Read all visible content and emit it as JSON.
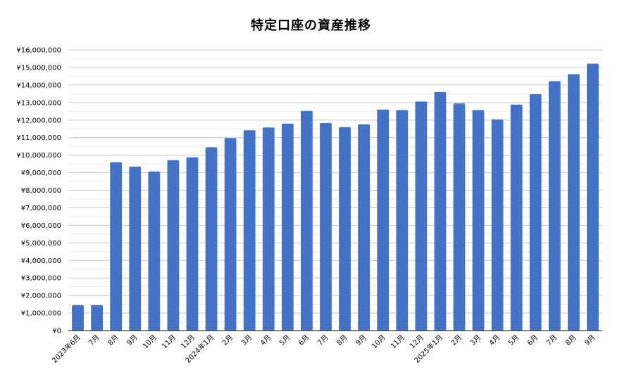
{
  "chart_data": {
    "type": "bar",
    "title": "特定口座の資産推移",
    "categories": [
      "2023年6月",
      "7月",
      "8月",
      "9月",
      "10月",
      "11月",
      "12月",
      "2024年1月",
      "2月",
      "3月",
      "4月",
      "5月",
      "6月",
      "7月",
      "8月",
      "9月",
      "10月",
      "11月",
      "12月",
      "2025年1月",
      "2月",
      "3月",
      "4月",
      "5月",
      "6月",
      "7月",
      "8月",
      "9月"
    ],
    "series": [
      {
        "values": [
          1450000,
          1450000,
          9600000,
          9350000,
          9070000,
          9720000,
          9880000,
          10450000,
          10970000,
          11420000,
          11580000,
          11800000,
          12520000,
          11830000,
          11600000,
          11760000,
          12600000,
          12570000,
          13060000,
          13600000,
          12950000,
          12570000,
          12040000,
          12880000,
          13480000,
          14220000,
          14620000,
          15220000
        ]
      }
    ],
    "yticks": [
      "¥0",
      "¥1,000,000",
      "¥2,000,000",
      "¥3,000,000",
      "¥4,000,000",
      "¥5,000,000",
      "¥6,000,000",
      "¥7,000,000",
      "¥8,000,000",
      "¥9,000,000",
      "¥10,000,000",
      "¥11,000,000",
      "¥12,000,000",
      "¥13,000,000",
      "¥14,000,000",
      "¥15,000,000",
      "¥16,000,000"
    ],
    "ylim": [
      0,
      16000000
    ],
    "xlabel": "",
    "ylabel": "",
    "grid": true,
    "colors": {
      "bar": "#4472C4",
      "grid_major": "#c8c8c8",
      "grid_minor": "#ebebeb",
      "axis": "#000000",
      "text": "#000000"
    }
  }
}
